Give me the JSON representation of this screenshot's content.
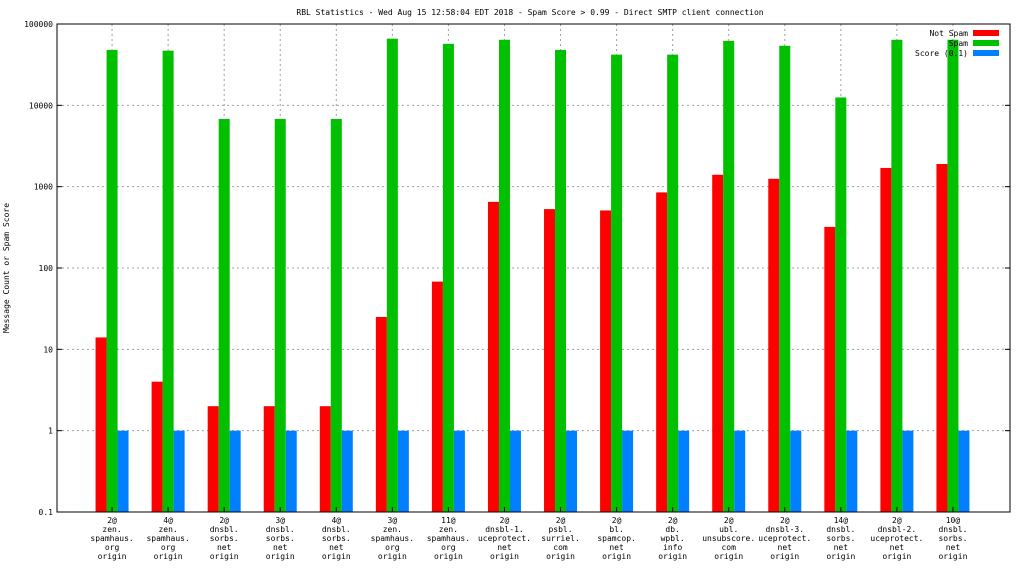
{
  "chart_data": {
    "type": "bar",
    "title": "RBL Statistics - Wed Aug 15 12:58:04 EDT 2018 - Spam Score > 0.99 - Direct SMTP client connection",
    "xlabel": "",
    "ylabel": "Message Count or Spam Score",
    "yscale": "log",
    "ylim": [
      0.1,
      100000
    ],
    "yticks": [
      {
        "value": 0.1,
        "label": "0.1"
      },
      {
        "value": 1,
        "label": "1"
      },
      {
        "value": 10,
        "label": "10"
      },
      {
        "value": 100,
        "label": "100"
      },
      {
        "value": 1000,
        "label": "1000"
      },
      {
        "value": 10000,
        "label": "10000"
      },
      {
        "value": 100000,
        "label": "100000"
      }
    ],
    "grid": true,
    "legend_position": "top-right",
    "categories": [
      [
        "2@",
        "zen.",
        "spamhaus.",
        "org",
        "origin"
      ],
      [
        "4@",
        "zen.",
        "spamhaus.",
        "org",
        "origin"
      ],
      [
        "2@",
        "dnsbl.",
        "sorbs.",
        "net",
        "origin"
      ],
      [
        "3@",
        "dnsbl.",
        "sorbs.",
        "net",
        "origin"
      ],
      [
        "4@",
        "dnsbl.",
        "sorbs.",
        "net",
        "origin"
      ],
      [
        "3@",
        "zen.",
        "spamhaus.",
        "org",
        "origin"
      ],
      [
        "11@",
        "zen.",
        "spamhaus.",
        "org",
        "origin"
      ],
      [
        "2@",
        "dnsbl-1.",
        "uceprotect.",
        "net",
        "origin"
      ],
      [
        "2@",
        "psbl.",
        "surriel.",
        "com",
        "origin"
      ],
      [
        "2@",
        "bl.",
        "spamcop.",
        "net",
        "origin"
      ],
      [
        "2@",
        "db.",
        "wpbl.",
        "info",
        "origin"
      ],
      [
        "2@",
        "ubl.",
        "unsubscore.",
        "com",
        "origin"
      ],
      [
        "2@",
        "dnsbl-3.",
        "uceprotect.",
        "net",
        "origin"
      ],
      [
        "14@",
        "dnsbl.",
        "sorbs.",
        "net",
        "origin"
      ],
      [
        "2@",
        "dnsbl-2.",
        "uceprotect.",
        "net",
        "origin"
      ],
      [
        "10@",
        "dnsbl.",
        "sorbs.",
        "net",
        "origin"
      ]
    ],
    "series": [
      {
        "name": "Not Spam",
        "color": "#ff0000",
        "values": [
          14,
          4,
          2,
          2,
          2,
          25,
          68,
          650,
          530,
          510,
          850,
          1400,
          1250,
          320,
          1700,
          1900
        ]
      },
      {
        "name": "Spam",
        "color": "#00c000",
        "values": [
          48000,
          47000,
          6800,
          6800,
          6800,
          66000,
          57000,
          64000,
          48000,
          42000,
          42000,
          62000,
          54000,
          12500,
          64000,
          64000
        ]
      },
      {
        "name": "Score (0.1)",
        "color": "#0080ff",
        "values": [
          1,
          1,
          1,
          1,
          1,
          1,
          1,
          1,
          1,
          1,
          1,
          1,
          1,
          1,
          1,
          1
        ]
      }
    ]
  }
}
